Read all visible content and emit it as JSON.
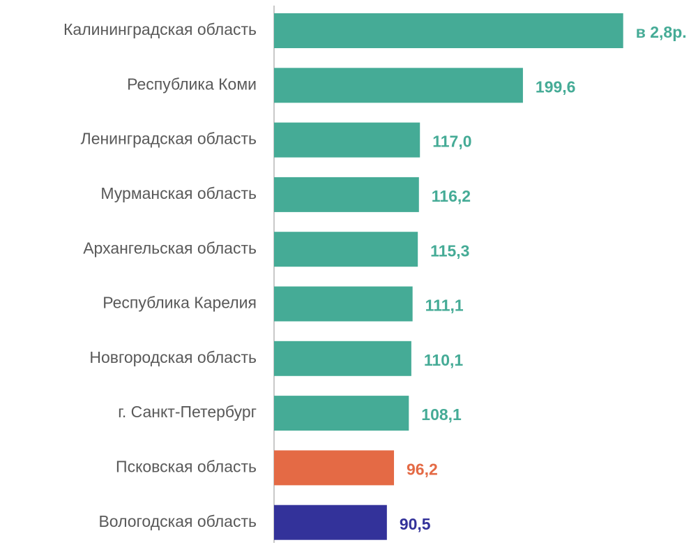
{
  "chart_data": {
    "type": "bar",
    "orientation": "horizontal",
    "categories": [
      "Калининградская область",
      "Республика Коми",
      "Ленинградская область",
      "Мурманская область",
      "Архангельская область",
      "Республика Карелия",
      "Новгородская область",
      "г. Санкт-Петербург",
      "Псковская область",
      "Вологодская область"
    ],
    "values": [
      280,
      199.6,
      117.0,
      116.2,
      115.3,
      111.1,
      110.1,
      108.1,
      96.2,
      90.5
    ],
    "value_labels": [
      "в 2,8р.",
      "199,6",
      "117,0",
      "116,2",
      "115,3",
      "111,1",
      "110,1",
      "108,1",
      "96,2",
      "90,5"
    ],
    "colors": [
      "#45ab96",
      "#45ab96",
      "#45ab96",
      "#45ab96",
      "#45ab96",
      "#45ab96",
      "#45ab96",
      "#45ab96",
      "#e46a45",
      "#33329a"
    ],
    "xlim": [
      0,
      340
    ]
  }
}
